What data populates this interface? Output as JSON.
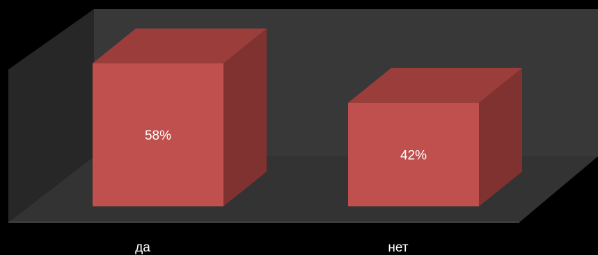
{
  "chart_data": {
    "type": "bar",
    "style": "3d-column",
    "categories": [
      "да",
      "нет"
    ],
    "values": [
      58,
      42
    ],
    "value_unit": "%",
    "data_labels": [
      "58%",
      "42%"
    ],
    "ylim": [
      0,
      70
    ],
    "grid": false,
    "legend": "none",
    "title": "",
    "xlabel": "",
    "ylabel": ""
  },
  "colors": {
    "background": "#000000",
    "back_wall": "#383838",
    "side_wall": "#272727",
    "floor": "#333333",
    "bar_front": "#c0504d",
    "bar_top": "#9b3e3b",
    "bar_side": "#7f3230",
    "text": "#ffffff"
  }
}
